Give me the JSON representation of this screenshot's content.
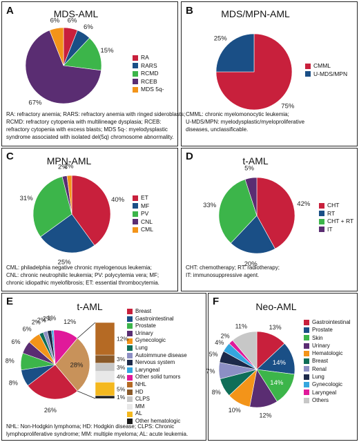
{
  "colors": {
    "red": "#c8203c",
    "blue": "#1a4f86",
    "green": "#3cb54a",
    "purple": "#5a2d72",
    "orange": "#f39419",
    "teal": "#0f6e58",
    "lightblue": "#35a6de",
    "gray": "#c7c7c7",
    "brown": "#b56a24",
    "yellow": "#f4b81f"
  },
  "panels": [
    {
      "letter": "A",
      "chart_data": {
        "type": "pie",
        "title": "MDS-AML",
        "categories": [
          "RA",
          "RARS",
          "RCMD",
          "RCEB",
          "MDS 5q-"
        ],
        "values": [
          6,
          6,
          15,
          67,
          6
        ],
        "labels": [
          "6%",
          "6%",
          "15%",
          "67%",
          "6%"
        ],
        "colors": [
          "#c8203c",
          "#1a4f86",
          "#3cb54a",
          "#5a2d72",
          "#f39419"
        ],
        "legend_position": "right"
      },
      "footnote": [
        "RA: refractory anemia; RARS: refractory anemia with ringed sideroblasts;",
        "RCMD: refractory cytopenia with multilineage dysplasia; RCEB:",
        "refractory cytopenia with excess blasts; MDS 5q-: myelodysplastic",
        "syndrome associated with isolated del(5q) chromosome abnormality."
      ]
    },
    {
      "letter": "B",
      "chart_data": {
        "type": "pie",
        "title": "MDS/MPN-AML",
        "categories": [
          "CMML",
          "U-MDS/MPN"
        ],
        "values": [
          75,
          25
        ],
        "labels": [
          "75%",
          "25%"
        ],
        "colors": [
          "#c8203c",
          "#1a4f86"
        ],
        "legend_position": "right"
      },
      "footnote": [
        "CMML: chronic myelomonocytic leukemia;",
        "U-MDS/MPN: myelodysplastic/myeloproliferative",
        "diseases, unclassificable."
      ]
    },
    {
      "letter": "C",
      "chart_data": {
        "type": "pie",
        "title": "MPN-AML",
        "categories": [
          "ET",
          "MF",
          "PV",
          "CNL",
          "CML"
        ],
        "values": [
          40,
          25,
          31,
          2,
          2
        ],
        "labels": [
          "40%",
          "25%",
          "31%",
          "2%",
          "2%"
        ],
        "colors": [
          "#c8203c",
          "#1a4f86",
          "#3cb54a",
          "#5a2d72",
          "#f39419"
        ],
        "legend_position": "right"
      },
      "footnote": [
        "CML: philadelphia negative chronic myelogenous leukemia;",
        "CNL: chronic neutrophilic leukemia; PV: polycytemia vera; MF;",
        "chronic idiopathic myelofibrosis; ET: essential thrombocytemia."
      ]
    },
    {
      "letter": "D",
      "chart_data": {
        "type": "pie",
        "title": "t-AML",
        "categories": [
          "CHT",
          "RT",
          "CHT + RT",
          "IT"
        ],
        "values": [
          42,
          20,
          33,
          5
        ],
        "labels": [
          "42%",
          "20%",
          "33%",
          "5%"
        ],
        "colors": [
          "#c8203c",
          "#1a4f86",
          "#3cb54a",
          "#5a2d72"
        ],
        "legend_position": "right"
      },
      "footnote": [
        "CHT: chemotherapy; RT: radiotherapy;",
        "IT: immunosuppressive agent."
      ]
    },
    {
      "letter": "E",
      "chart_data": {
        "type": "pie",
        "title": "t-AML",
        "categories": [
          "Breast",
          "Gastrointestinal",
          "Prostate",
          "Urinary",
          "Gynecologic",
          "Lung",
          "Autoimmune disease",
          "Nervous system",
          "Laryngeal",
          "Other solid tumors",
          "NHL",
          "HD",
          "CLPS",
          "MM",
          "AL",
          "Other hematologic"
        ],
        "colors": [
          "#c8203c",
          "#1a4f86",
          "#3cb54a",
          "#5a2d72",
          "#f39419",
          "#0f6e58",
          "#8c8fc4",
          "#1d2a4a",
          "#35a6de",
          "#e0199a",
          "#b56a24",
          "#8a5a2a",
          "#c7c7c7",
          "#e8e8e8",
          "#f4b81f",
          "#1a1a1a"
        ],
        "pie": {
          "order": [
            "Other hematologic group",
            "Breast",
            "Gastrointestinal",
            "Prostate",
            "Urinary",
            "Gynecologic",
            "Lung",
            "Autoimmune disease",
            "Nervous system",
            "Laryngeal",
            "Other solid tumors"
          ],
          "values": [
            28,
            26,
            8,
            8,
            6,
            6,
            2,
            2,
            2,
            1,
            12
          ],
          "labels": [
            "28%",
            "26%",
            "8%",
            "8%",
            "6%",
            "6%",
            "2%",
            "2%",
            "2%",
            "1%",
            "12%"
          ],
          "colors": [
            "#c8925a",
            "#c8203c",
            "#1a4f86",
            "#3cb54a",
            "#5a2d72",
            "#f39419",
            "#0f6e58",
            "#8c8fc4",
            "#1d2a4a",
            "#35a6de",
            "#e0199a"
          ]
        },
        "bar": {
          "categories": [
            "NHL",
            "HD",
            "CLPS",
            "MM",
            "AL",
            "Other hematologic"
          ],
          "values": [
            12,
            3,
            3,
            4,
            5,
            1
          ],
          "labels": [
            "12%",
            "3%",
            "3%",
            "4%",
            "5%",
            "1%"
          ],
          "colors": [
            "#b56a24",
            "#8a5a2a",
            "#c7c7c7",
            "#e8e8e8",
            "#f4b81f",
            "#1a1a1a"
          ]
        },
        "legend_position": "right"
      },
      "footnote": [
        "NHL: Non-Hodgkin lymphoma; HD: Hodgkin disease; CLPS: Chronic",
        "lymphoproliferative syndrome; MM: multiple myeloma; AL: acute leukemia."
      ]
    },
    {
      "letter": "F",
      "chart_data": {
        "type": "pie",
        "title": "Neo-AML",
        "categories": [
          "Gastrointestinal",
          "Prostate",
          "Skin",
          "Urinary",
          "Hematologic",
          "Breast",
          "Renal",
          "Lung",
          "Gynecologic",
          "Laryngeal",
          "Others"
        ],
        "values": [
          13,
          14,
          14,
          12,
          10,
          8,
          7,
          5,
          4,
          2,
          11
        ],
        "labels": [
          "13%",
          "14%",
          "14%",
          "12%",
          "10%",
          "8%",
          "7%",
          "5%",
          "4%",
          "2%",
          "11%"
        ],
        "colors": [
          "#c8203c",
          "#1a4f86",
          "#3cb54a",
          "#5a2d72",
          "#f39419",
          "#0f6e58",
          "#8c8fc4",
          "#1d2a4a",
          "#35a6de",
          "#e0199a",
          "#c7c7c7"
        ],
        "legend_position": "right"
      },
      "footnote": []
    }
  ]
}
